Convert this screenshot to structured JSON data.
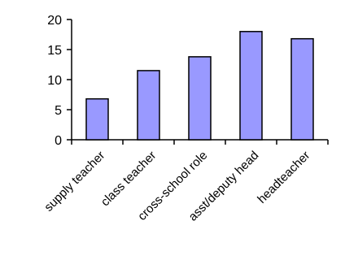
{
  "chart_data": {
    "type": "bar",
    "categories": [
      "supply teacher",
      "class teacher",
      "cross-school role",
      "asst/deputy head",
      "headteacher"
    ],
    "values": [
      6.8,
      11.5,
      13.8,
      18.0,
      16.8
    ],
    "ylim": [
      0,
      20
    ],
    "yticks": [
      "0",
      "5",
      "10",
      "15",
      "20"
    ],
    "grid": false,
    "legend": "none",
    "colors": {
      "bar_fill": "#9999ff",
      "bar_stroke": "#000000",
      "axis": "#000000"
    }
  }
}
